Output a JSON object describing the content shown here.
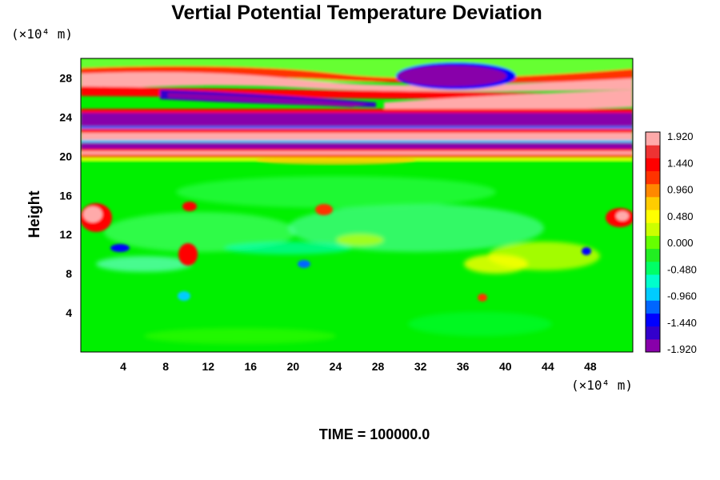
{
  "chart_data": {
    "type": "heatmap",
    "title": "Vertial Potential Temperature Deviation",
    "ylabel": "Height",
    "y_unit": "(×10⁴ m)",
    "x_unit": "(×10⁴ m)",
    "xlim": [
      0,
      52
    ],
    "ylim": [
      0,
      30
    ],
    "x_ticks": [
      4,
      8,
      12,
      16,
      20,
      24,
      28,
      32,
      36,
      40,
      44,
      48
    ],
    "y_ticks": [
      4,
      8,
      12,
      16,
      20,
      24,
      28
    ],
    "colorbar": {
      "labels": [
        "1.920",
        "1.440",
        "0.960",
        "0.480",
        "0.000",
        "-0.480",
        "-0.960",
        "-1.440",
        "-1.920"
      ],
      "range": [
        -1.92,
        1.92
      ],
      "colors": [
        "#8800aa",
        "#3300cc",
        "#0000ff",
        "#0066ff",
        "#00ccff",
        "#00ffcc",
        "#00ff66",
        "#22ee22",
        "#66ff00",
        "#ccff00",
        "#ffff00",
        "#ffcc00",
        "#ff8800",
        "#ff3300",
        "#ff0000",
        "#ee3333",
        "#ffaaaa"
      ]
    },
    "time_label": "TIME = 100000.0"
  }
}
